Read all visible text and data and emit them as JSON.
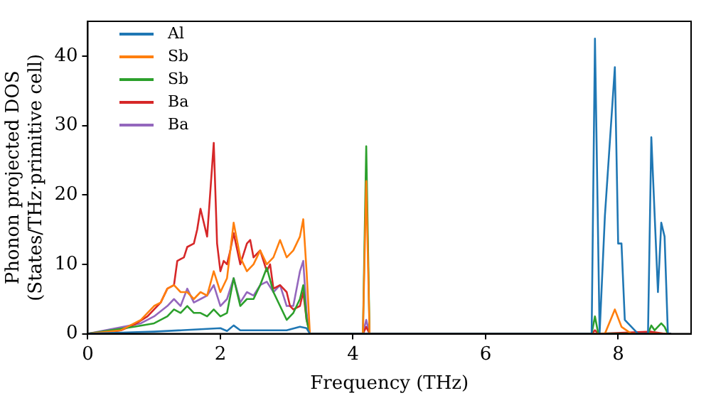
{
  "chart_data": {
    "type": "line",
    "xlabel": "Frequency (THz)",
    "ylabel": "Phonon projected DOS\n(States/THz·primitive cell)",
    "xlim": [
      0,
      9.1
    ],
    "xticks": [
      0,
      2,
      4,
      6,
      8
    ],
    "ylim": [
      0,
      45
    ],
    "yticks": [
      0,
      10,
      20,
      30,
      40
    ],
    "grid": false,
    "legend": "top left",
    "marker": "none",
    "line_style": "solid",
    "series": [
      {
        "name": "Al",
        "color": "#1f77b4",
        "x": [
          0,
          1.0,
          2.0,
          2.1,
          2.2,
          2.3,
          3.0,
          3.2,
          3.3,
          3.35,
          7.6,
          7.65,
          7.72,
          7.8,
          7.95,
          8.0,
          8.05,
          8.1,
          8.3,
          8.45,
          8.5,
          8.6,
          8.65,
          8.7,
          8.75,
          8.8
        ],
        "values": [
          0,
          0.3,
          0.8,
          0.4,
          1.2,
          0.5,
          0.5,
          1,
          0.8,
          0,
          0,
          42.5,
          0,
          17,
          38.4,
          13,
          13,
          2,
          0,
          0,
          28.3,
          6,
          16,
          14,
          0,
          0
        ]
      },
      {
        "name": "Sb",
        "color": "#ff7f0e",
        "x": [
          0,
          0.5,
          0.8,
          1.0,
          1.1,
          1.2,
          1.3,
          1.4,
          1.5,
          1.6,
          1.7,
          1.8,
          1.9,
          2.0,
          2.1,
          2.2,
          2.3,
          2.4,
          2.5,
          2.6,
          2.7,
          2.8,
          2.9,
          3.0,
          3.1,
          3.2,
          3.25,
          3.3,
          3.35,
          4.15,
          4.2,
          4.25,
          7.8,
          7.95,
          8.05,
          8.2,
          8.8
        ],
        "values": [
          0,
          0.5,
          2,
          4,
          4.5,
          6.5,
          7,
          6,
          6,
          5,
          6,
          5.5,
          9,
          6,
          8,
          16,
          11,
          9,
          10,
          12,
          10,
          11,
          13.5,
          11,
          12,
          14,
          16.5,
          9,
          0,
          0,
          22,
          0,
          0,
          3.5,
          1,
          0,
          0
        ]
      },
      {
        "name": "Sb",
        "color": "#2ca02c",
        "x": [
          0,
          0.7,
          1.0,
          1.2,
          1.3,
          1.4,
          1.5,
          1.6,
          1.7,
          1.8,
          1.9,
          2.0,
          2.1,
          2.2,
          2.3,
          2.4,
          2.5,
          2.6,
          2.7,
          2.8,
          2.9,
          3.0,
          3.1,
          3.2,
          3.25,
          3.3,
          3.35,
          4.15,
          4.2,
          4.25,
          7.6,
          7.65,
          7.7,
          8.45,
          8.5,
          8.55,
          8.65,
          8.7,
          8.75,
          8.8
        ],
        "values": [
          0,
          1,
          1.5,
          2.5,
          3.5,
          3,
          4,
          3,
          3,
          2.5,
          3.5,
          2.5,
          3,
          8,
          4,
          5,
          5,
          7,
          9.5,
          6,
          4,
          2,
          3,
          5,
          7,
          2,
          0,
          0,
          27,
          0,
          0,
          2.5,
          0,
          0,
          1.2,
          0.5,
          1.5,
          1,
          0,
          0
        ]
      },
      {
        "name": "Ba",
        "color": "#d62728",
        "x": [
          0,
          0.3,
          0.5,
          0.7,
          0.9,
          1.0,
          1.1,
          1.2,
          1.3,
          1.35,
          1.45,
          1.5,
          1.6,
          1.65,
          1.7,
          1.8,
          1.9,
          1.95,
          2.0,
          2.05,
          2.1,
          2.15,
          2.2,
          2.3,
          2.4,
          2.45,
          2.5,
          2.6,
          2.7,
          2.75,
          2.8,
          2.9,
          3.0,
          3.05,
          3.1,
          3.2,
          3.25,
          3.3,
          3.35,
          4.15,
          4.2,
          4.25,
          7.6,
          7.65,
          7.7,
          8.5,
          8.7,
          8.8
        ],
        "values": [
          0,
          0.2,
          0.5,
          1.3,
          2.5,
          3.5,
          4.5,
          6.5,
          7,
          10.5,
          11,
          12.5,
          13,
          15,
          18,
          14,
          27.5,
          13,
          9,
          10.5,
          10,
          12,
          14.5,
          10,
          13,
          13.5,
          11,
          12,
          9,
          10,
          6.5,
          7,
          6,
          4,
          3.5,
          4,
          6,
          2,
          0,
          0,
          1,
          0,
          0,
          0.5,
          0,
          0.3,
          0,
          0
        ]
      },
      {
        "name": "Ba",
        "color": "#9467bd",
        "x": [
          0,
          0.8,
          1.0,
          1.2,
          1.3,
          1.4,
          1.5,
          1.6,
          1.7,
          1.8,
          1.9,
          2.0,
          2.1,
          2.2,
          2.3,
          2.4,
          2.5,
          2.6,
          2.7,
          2.8,
          2.9,
          3.0,
          3.1,
          3.2,
          3.25,
          3.3,
          3.35,
          4.15,
          4.2,
          4.25,
          8.8
        ],
        "values": [
          0,
          1.5,
          2.5,
          4,
          5,
          4,
          6.5,
          4.5,
          5,
          5.5,
          7,
          4,
          5,
          8,
          4.5,
          6,
          5.5,
          7,
          7.5,
          6,
          7,
          4,
          4,
          9,
          10.5,
          3,
          0,
          0,
          2,
          0,
          0
        ]
      }
    ]
  }
}
